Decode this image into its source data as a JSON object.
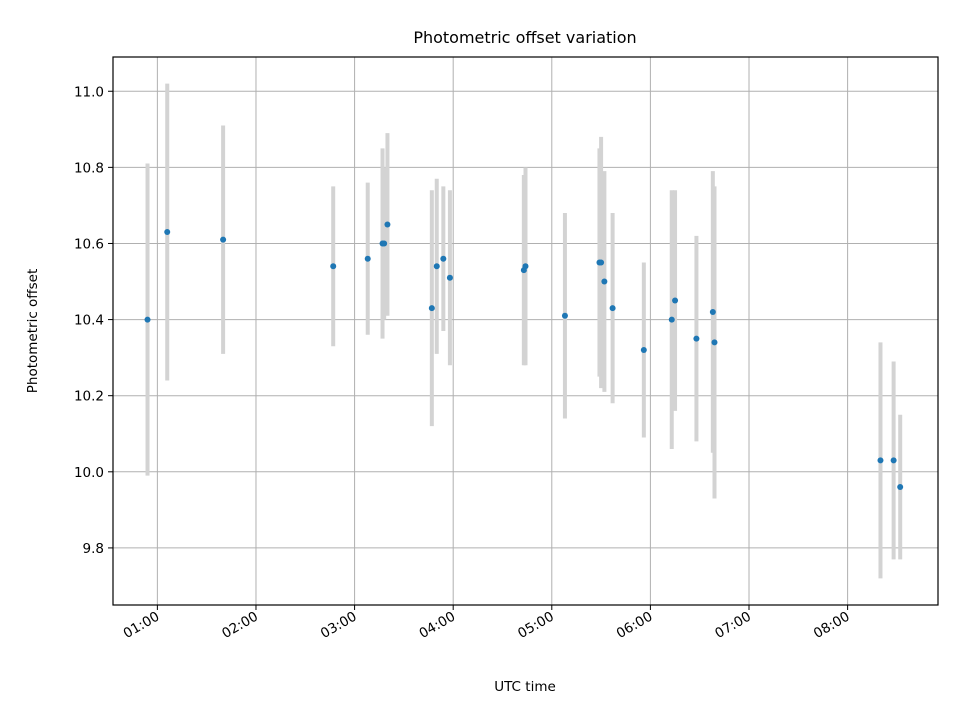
{
  "chart_data": {
    "type": "scatter",
    "title": "Photometric offset variation",
    "xlabel": "UTC time",
    "ylabel": "Photometric offset",
    "xlim": [
      "00:33",
      "08:55"
    ],
    "ylim": [
      9.65,
      11.09
    ],
    "x_ticks": [
      "01:00",
      "02:00",
      "03:00",
      "04:00",
      "05:00",
      "06:00",
      "07:00",
      "08:00"
    ],
    "y_ticks": [
      "9.8",
      "10.0",
      "10.2",
      "10.4",
      "10.6",
      "10.8",
      "11.0"
    ],
    "grid": true,
    "legend": "none",
    "colors": {
      "points": "#1f77b4",
      "error_bars": "#d3d3d3",
      "grid": "#b0b0b0"
    },
    "points": [
      {
        "x": "00:54",
        "y": 10.4,
        "err": 0.41
      },
      {
        "x": "01:06",
        "y": 10.63,
        "err": 0.39
      },
      {
        "x": "01:40",
        "y": 10.61,
        "err": 0.3
      },
      {
        "x": "02:47",
        "y": 10.54,
        "err": 0.21
      },
      {
        "x": "03:08",
        "y": 10.56,
        "err": 0.2
      },
      {
        "x": "03:17",
        "y": 10.6,
        "err": 0.25
      },
      {
        "x": "03:18",
        "y": 10.6,
        "err": 0.2
      },
      {
        "x": "03:20",
        "y": 10.65,
        "err": 0.24
      },
      {
        "x": "03:47",
        "y": 10.43,
        "err": 0.31
      },
      {
        "x": "03:50",
        "y": 10.54,
        "err": 0.23
      },
      {
        "x": "03:54",
        "y": 10.56,
        "err": 0.19
      },
      {
        "x": "03:58",
        "y": 10.51,
        "err": 0.23
      },
      {
        "x": "04:43",
        "y": 10.53,
        "err": 0.25
      },
      {
        "x": "04:44",
        "y": 10.54,
        "err": 0.26
      },
      {
        "x": "05:08",
        "y": 10.41,
        "err": 0.27
      },
      {
        "x": "05:29",
        "y": 10.55,
        "err": 0.3
      },
      {
        "x": "05:30",
        "y": 10.55,
        "err": 0.33
      },
      {
        "x": "05:32",
        "y": 10.5,
        "err": 0.29
      },
      {
        "x": "05:37",
        "y": 10.43,
        "err": 0.25
      },
      {
        "x": "05:56",
        "y": 10.32,
        "err": 0.23
      },
      {
        "x": "06:13",
        "y": 10.4,
        "err": 0.34
      },
      {
        "x": "06:15",
        "y": 10.45,
        "err": 0.29
      },
      {
        "x": "06:28",
        "y": 10.35,
        "err": 0.27
      },
      {
        "x": "06:38",
        "y": 10.42,
        "err": 0.37
      },
      {
        "x": "06:39",
        "y": 10.34,
        "err": 0.41
      },
      {
        "x": "08:20",
        "y": 10.03,
        "err": 0.31
      },
      {
        "x": "08:28",
        "y": 10.03,
        "err": 0.26
      },
      {
        "x": "08:32",
        "y": 9.96,
        "err": 0.19
      }
    ]
  }
}
